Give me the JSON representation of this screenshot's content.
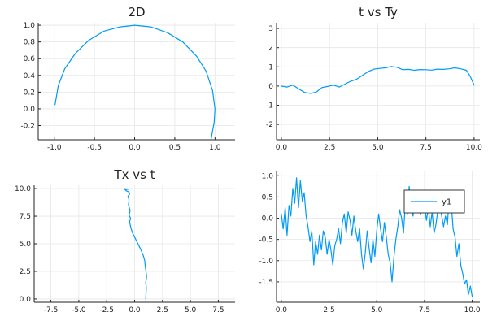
{
  "chart_data": [
    {
      "type": "line",
      "title": "2D",
      "xlim": [
        -1.2,
        1.25
      ],
      "ylim": [
        -0.37,
        1.03
      ],
      "xticks": [
        -1.0,
        -0.5,
        0.0,
        0.5,
        1.0
      ],
      "xtick_labels": [
        "-1.0",
        "-0.5",
        "0.0",
        "0.5",
        "1.0"
      ],
      "yticks": [
        -0.2,
        0.0,
        0.2,
        0.4,
        0.6,
        0.8,
        1.0
      ],
      "ytick_labels": [
        "-0.2",
        "0.0",
        "0.2",
        "0.4",
        "0.6",
        "0.8",
        "1.0"
      ],
      "grid": true,
      "legend": false,
      "color": "#009AF9",
      "series": [
        {
          "x": [
            -0.99,
            -0.95,
            -0.87,
            -0.74,
            -0.57,
            -0.38,
            -0.18,
            0.0,
            0.2,
            0.41,
            0.6,
            0.77,
            0.89,
            0.97,
            1.0,
            0.99,
            0.95
          ],
          "y": [
            0.05,
            0.28,
            0.48,
            0.66,
            0.82,
            0.93,
            0.98,
            1.0,
            0.98,
            0.91,
            0.8,
            0.63,
            0.45,
            0.22,
            0.0,
            -0.16,
            -0.37
          ]
        }
      ]
    },
    {
      "type": "line",
      "title": "t vs Ty",
      "xlim": [
        -0.25,
        10.3
      ],
      "ylim": [
        -2.8,
        3.3
      ],
      "xticks": [
        0.0,
        2.5,
        5.0,
        7.5,
        10.0
      ],
      "xtick_labels": [
        "0.0",
        "2.5",
        "5.0",
        "7.5",
        "10.0"
      ],
      "yticks": [
        -2,
        -1,
        0,
        1,
        2,
        3
      ],
      "ytick_labels": [
        "-2",
        "-1",
        "0",
        "1",
        "2",
        "3"
      ],
      "grid": true,
      "legend": false,
      "color": "#009AF9",
      "series": [
        {
          "x": [
            0.0,
            0.3,
            0.6,
            0.9,
            1.2,
            1.5,
            1.8,
            2.1,
            2.4,
            2.7,
            3.0,
            3.3,
            3.6,
            3.9,
            4.2,
            4.5,
            4.8,
            5.1,
            5.4,
            5.7,
            6.0,
            6.3,
            6.6,
            6.9,
            7.2,
            7.5,
            7.8,
            8.1,
            8.4,
            8.7,
            9.0,
            9.3,
            9.6,
            9.8,
            10.0
          ],
          "y": [
            0.0,
            -0.05,
            0.05,
            -0.15,
            -0.33,
            -0.38,
            -0.32,
            -0.08,
            -0.02,
            0.05,
            -0.05,
            0.1,
            0.25,
            0.35,
            0.55,
            0.75,
            0.88,
            0.92,
            0.95,
            1.02,
            0.98,
            0.85,
            0.87,
            0.82,
            0.86,
            0.85,
            0.83,
            0.88,
            0.87,
            0.9,
            0.95,
            0.9,
            0.82,
            0.5,
            0.05
          ]
        }
      ]
    },
    {
      "type": "line",
      "title": "Tx vs t",
      "xlim": [
        -9.0,
        9.0
      ],
      "ylim": [
        -0.3,
        10.3
      ],
      "xticks": [
        -7.5,
        -5.0,
        -2.5,
        0.0,
        2.5,
        5.0,
        7.5
      ],
      "xtick_labels": [
        "-7.5",
        "-5.0",
        "-2.5",
        "0.0",
        "2.5",
        "5.0",
        "7.5"
      ],
      "yticks": [
        0.0,
        2.5,
        5.0,
        7.5,
        10.0
      ],
      "ytick_labels": [
        "0.0",
        "2.5",
        "5.0",
        "7.5",
        "10.0"
      ],
      "grid": true,
      "legend": false,
      "color": "#009AF9",
      "series": [
        {
          "x": [
            1.0,
            1.02,
            1.05,
            1.0,
            1.07,
            1.02,
            0.95,
            0.9,
            0.75,
            0.55,
            0.3,
            0.05,
            -0.2,
            -0.35,
            -0.45,
            -0.35,
            -0.5,
            -0.4,
            -0.55,
            -0.5,
            -0.6,
            -0.45,
            -0.5,
            -0.75,
            -0.85,
            -0.55,
            -0.9
          ],
          "y": [
            0.0,
            0.5,
            1.0,
            1.5,
            2.0,
            2.5,
            3.0,
            3.5,
            4.0,
            4.5,
            5.0,
            5.5,
            6.0,
            6.5,
            7.0,
            7.3,
            7.6,
            8.0,
            8.5,
            9.0,
            9.3,
            9.5,
            9.7,
            9.8,
            9.9,
            9.95,
            10.0
          ]
        }
      ]
    },
    {
      "type": "line",
      "title": "",
      "xlim": [
        -0.25,
        10.4
      ],
      "ylim": [
        -1.98,
        1.12
      ],
      "xticks": [
        0.0,
        2.5,
        5.0,
        7.5,
        10.0
      ],
      "xtick_labels": [
        "0.0",
        "2.5",
        "5.0",
        "7.5",
        "10.0"
      ],
      "yticks": [
        -1.5,
        -1.0,
        -0.5,
        0.0,
        0.5,
        1.0
      ],
      "ytick_labels": [
        "-1.5",
        "-1.0",
        "-0.5",
        "0.0",
        "0.5",
        "1.0"
      ],
      "grid": true,
      "legend": true,
      "legend_position": "top-right",
      "color": "#009AF9",
      "series": [
        {
          "name": "y1",
          "x": [
            0.0,
            0.1,
            0.2,
            0.3,
            0.4,
            0.5,
            0.6,
            0.7,
            0.8,
            0.9,
            1.0,
            1.1,
            1.2,
            1.3,
            1.4,
            1.5,
            1.6,
            1.7,
            1.8,
            1.9,
            2.0,
            2.1,
            2.2,
            2.3,
            2.4,
            2.5,
            2.6,
            2.7,
            2.8,
            2.9,
            3.0,
            3.1,
            3.2,
            3.3,
            3.4,
            3.5,
            3.6,
            3.7,
            3.8,
            3.9,
            4.0,
            4.1,
            4.2,
            4.3,
            4.4,
            4.5,
            4.6,
            4.7,
            4.8,
            4.9,
            5.0,
            5.1,
            5.2,
            5.3,
            5.4,
            5.5,
            5.6,
            5.7,
            5.8,
            5.9,
            6.0,
            6.1,
            6.2,
            6.3,
            6.4,
            6.5,
            6.6,
            6.7,
            6.8,
            6.9,
            7.0,
            7.1,
            7.2,
            7.3,
            7.4,
            7.5,
            7.6,
            7.7,
            7.8,
            7.9,
            8.0,
            8.1,
            8.2,
            8.3,
            8.4,
            8.5,
            8.6,
            8.7,
            8.8,
            8.9,
            9.0,
            9.1,
            9.2,
            9.3,
            9.4,
            9.5,
            9.6,
            9.7,
            9.8,
            9.9,
            10.0
          ],
          "y": [
            0.1,
            -0.25,
            0.25,
            -0.4,
            0.3,
            0.05,
            0.7,
            0.35,
            0.95,
            0.25,
            0.88,
            0.4,
            0.6,
            0.05,
            -0.2,
            -0.55,
            -0.3,
            -1.1,
            -0.55,
            -0.85,
            -0.4,
            -0.75,
            -0.3,
            -0.45,
            -0.85,
            -0.5,
            -0.75,
            -1.1,
            -0.65,
            -0.5,
            -0.25,
            -0.6,
            -0.1,
            0.1,
            -0.35,
            0.15,
            -0.05,
            -0.4,
            0.05,
            -0.3,
            -0.55,
            -0.25,
            -0.85,
            -1.2,
            -0.8,
            -0.3,
            -0.7,
            -1.05,
            -0.5,
            -0.9,
            -0.3,
            0.1,
            -0.25,
            -0.55,
            -0.1,
            -0.45,
            -0.85,
            -1.05,
            -1.5,
            -0.9,
            -0.5,
            -0.2,
            0.2,
            0.0,
            -0.35,
            0.4,
            0.1,
            0.75,
            0.2,
            0.05,
            0.5,
            0.15,
            0.55,
            0.1,
            0.45,
            0.3,
            -0.05,
            0.25,
            -0.2,
            0.15,
            -0.35,
            -0.15,
            0.2,
            0.35,
            0.05,
            -0.2,
            0.05,
            -0.15,
            0.55,
            0.35,
            -0.25,
            -0.45,
            -0.9,
            -0.6,
            -1.1,
            -1.3,
            -1.55,
            -1.45,
            -1.8,
            -1.6,
            -1.85
          ]
        }
      ]
    }
  ]
}
